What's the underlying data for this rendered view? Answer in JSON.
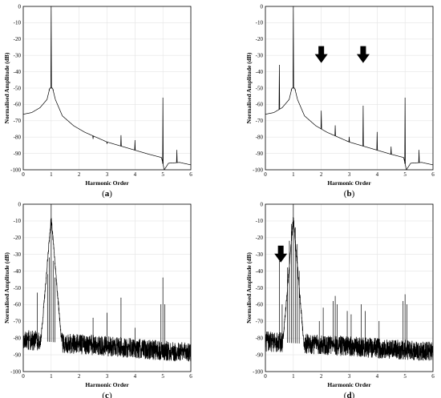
{
  "chart_data": [
    {
      "id": "a",
      "type": "line",
      "panel_label": "a",
      "xlabel": "Harmonic Order",
      "ylabel": "Normalised Amplitude (dB)",
      "xlim": [
        0,
        6
      ],
      "ylim": [
        -100,
        0
      ],
      "xticks": [
        "0",
        "1",
        "2",
        "3",
        "4",
        "5",
        "6"
      ],
      "yticks": [
        "0",
        "-10",
        "-20",
        "-30",
        "-40",
        "-50",
        "-60",
        "-70",
        "-80",
        "-90",
        "-100"
      ],
      "grid": true,
      "style": "smooth",
      "floor": [
        [
          0,
          -66
        ],
        [
          0.3,
          -65
        ],
        [
          0.6,
          -62
        ],
        [
          0.85,
          -57
        ],
        [
          0.95,
          -50
        ],
        [
          1.05,
          -50
        ],
        [
          1.15,
          -57
        ],
        [
          1.4,
          -67
        ],
        [
          1.8,
          -73
        ],
        [
          2.2,
          -77
        ],
        [
          2.6,
          -80
        ],
        [
          3.0,
          -83
        ],
        [
          3.5,
          -85.5
        ],
        [
          4.0,
          -88
        ],
        [
          4.5,
          -90.5
        ],
        [
          4.95,
          -92.5
        ],
        [
          5.05,
          -100
        ],
        [
          5.2,
          -96
        ],
        [
          5.6,
          -95.5
        ],
        [
          6,
          -97
        ]
      ],
      "peaks": [
        [
          1,
          0
        ],
        [
          5,
          -56
        ],
        [
          3.5,
          -79
        ],
        [
          4.0,
          -82
        ],
        [
          3.0,
          -84
        ],
        [
          2.5,
          -81
        ],
        [
          5.5,
          -88
        ],
        [
          0.93,
          -51
        ],
        [
          1.07,
          -51
        ]
      ],
      "arrows": []
    },
    {
      "id": "b",
      "type": "line",
      "panel_label": "b",
      "xlabel": "Harmonic Order",
      "ylabel": "Normalised Amplitude (dB)",
      "xlim": [
        0,
        6
      ],
      "ylim": [
        -100,
        0
      ],
      "xticks": [
        "0",
        "1",
        "2",
        "3",
        "4",
        "5",
        "6"
      ],
      "yticks": [
        "0",
        "-10",
        "-20",
        "-30",
        "-40",
        "-50",
        "-60",
        "-70",
        "-80",
        "-90",
        "-100"
      ],
      "grid": true,
      "style": "smooth",
      "floor": [
        [
          0,
          -66
        ],
        [
          0.3,
          -65
        ],
        [
          0.5,
          -63
        ],
        [
          0.6,
          -62
        ],
        [
          0.85,
          -57
        ],
        [
          0.95,
          -50
        ],
        [
          1.05,
          -50
        ],
        [
          1.15,
          -57
        ],
        [
          1.4,
          -67
        ],
        [
          1.8,
          -73
        ],
        [
          2.2,
          -77
        ],
        [
          2.6,
          -80
        ],
        [
          3.0,
          -83
        ],
        [
          3.5,
          -85.5
        ],
        [
          4.0,
          -88
        ],
        [
          4.5,
          -90.5
        ],
        [
          4.95,
          -92.5
        ],
        [
          5.05,
          -100
        ],
        [
          5.2,
          -96
        ],
        [
          5.6,
          -95.5
        ],
        [
          6,
          -97
        ]
      ],
      "peaks": [
        [
          1,
          0
        ],
        [
          0.5,
          -36
        ],
        [
          2,
          -64
        ],
        [
          3.5,
          -61
        ],
        [
          5,
          -56
        ],
        [
          2.5,
          -73
        ],
        [
          4,
          -77
        ],
        [
          3,
          -80
        ],
        [
          4.5,
          -86
        ],
        [
          5.5,
          -88
        ],
        [
          0.93,
          -51
        ],
        [
          1.07,
          -51
        ]
      ],
      "arrows": [
        2,
        3.5
      ]
    },
    {
      "id": "c",
      "type": "line",
      "panel_label": "c",
      "xlabel": "Harmonic Order",
      "ylabel": "Normalised Amplitude (dB)",
      "xlim": [
        0,
        6
      ],
      "ylim": [
        -100,
        0
      ],
      "xticks": [
        "0",
        "1",
        "2",
        "3",
        "4",
        "5",
        "6"
      ],
      "yticks": [
        "0",
        "-10",
        "-20",
        "-30",
        "-40",
        "-50",
        "-60",
        "-70",
        "-80",
        "-90",
        "-100"
      ],
      "grid": true,
      "style": "noisy",
      "noise_base": -81,
      "noise_slope": -1.3,
      "noise_amp": 6,
      "peaks": [
        [
          1,
          0
        ],
        [
          0.93,
          -32
        ],
        [
          1.07,
          -34
        ],
        [
          0.87,
          -42
        ],
        [
          1.13,
          -44
        ],
        [
          0.5,
          -53
        ],
        [
          2.5,
          -68
        ],
        [
          3,
          -65
        ],
        [
          3.5,
          -56
        ],
        [
          4,
          -74
        ],
        [
          5,
          -44
        ],
        [
          4.93,
          -60
        ],
        [
          5.07,
          -60
        ]
      ],
      "arrows": []
    },
    {
      "id": "d",
      "type": "line",
      "panel_label": "d",
      "xlabel": "Harmonic Order",
      "ylabel": "Normalised Amplitude (dB)",
      "xlim": [
        0,
        6
      ],
      "ylim": [
        -100,
        0
      ],
      "xticks": [
        "0",
        "1",
        "2",
        "3",
        "4",
        "5",
        "6"
      ],
      "yticks": [
        "0",
        "-10",
        "-20",
        "-30",
        "-40",
        "-50",
        "-60",
        "-70",
        "-80",
        "-90",
        "-100"
      ],
      "grid": true,
      "style": "noisy",
      "noise_base": -82,
      "noise_slope": -1.0,
      "noise_amp": 6,
      "peaks": [
        [
          1,
          0
        ],
        [
          0.5,
          -34
        ],
        [
          0.93,
          -12
        ],
        [
          1.07,
          -14
        ],
        [
          0.86,
          -22
        ],
        [
          1.14,
          -24
        ],
        [
          0.79,
          -38
        ],
        [
          1.21,
          -40
        ],
        [
          2.07,
          -62
        ],
        [
          2.43,
          -58
        ],
        [
          2.5,
          -55
        ],
        [
          2.57,
          -60
        ],
        [
          2.93,
          -64
        ],
        [
          3.07,
          -66
        ],
        [
          3.43,
          -60
        ],
        [
          3.57,
          -64
        ],
        [
          1.93,
          -70
        ],
        [
          4.07,
          -70
        ],
        [
          4.93,
          -58
        ],
        [
          5,
          -54
        ],
        [
          5.07,
          -60
        ],
        [
          0.6,
          -60
        ]
      ],
      "arrows": [
        0.55
      ]
    }
  ]
}
